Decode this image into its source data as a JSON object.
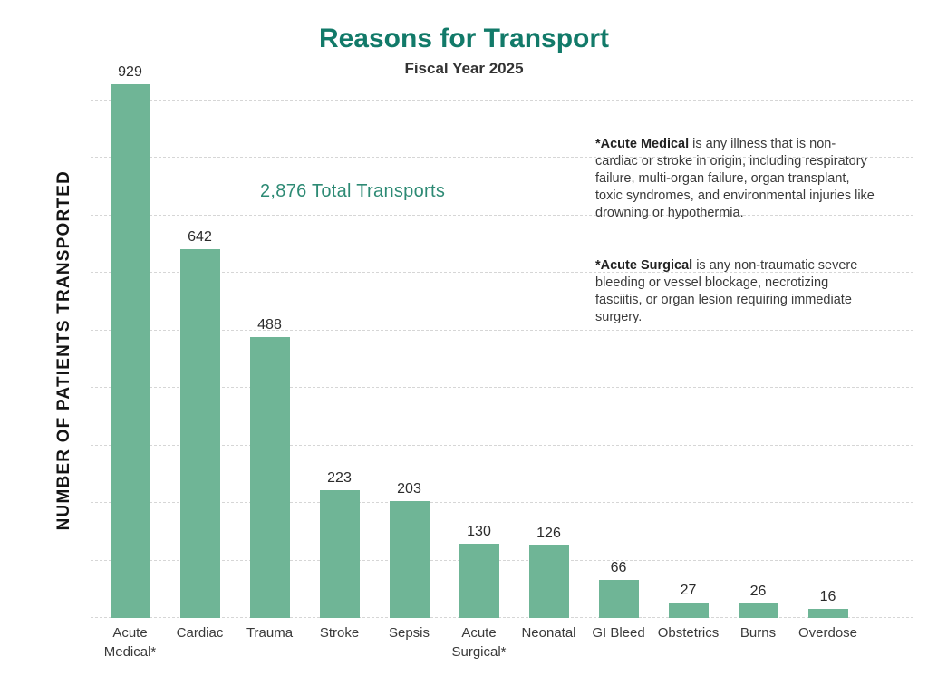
{
  "header": {
    "title": "Reasons for Transport",
    "subtitle": "Fiscal Year 2025"
  },
  "annotations": {
    "total": "2,876 Total Transports",
    "notes": [
      {
        "lead": "*Acute Medical",
        "rest": " is any illness that is non-cardiac or stroke in origin, including respiratory failure, multi-organ failure, organ transplant, toxic syndromes, and environmental injuries like drowning or hypothermia."
      },
      {
        "lead": "*Acute Surgical",
        "rest": " is any non-traumatic severe bleeding or vessel blockage, necrotizing fasciitis, or organ lesion requiring immediate surgery."
      }
    ]
  },
  "chart_data": {
    "type": "bar",
    "title": "Reasons for Transport",
    "subtitle": "Fiscal Year 2025",
    "categories": [
      "Acute Medical*",
      "Cardiac",
      "Trauma",
      "Stroke",
      "Sepsis",
      "Acute Surgical*",
      "Neonatal",
      "GI Bleed",
      "Obstetrics",
      "Burns",
      "Overdose"
    ],
    "values": [
      929,
      642,
      488,
      223,
      203,
      130,
      126,
      66,
      27,
      26,
      16
    ],
    "total": 2876,
    "xlabel": "",
    "ylabel": "NUMBER OF PATIENTS TRANSPORTED",
    "ylim": [
      0,
      930
    ],
    "gridline_interval": 100,
    "gridline_max": 900,
    "grid": "horizontal dashed, no y-axis tick labels",
    "legend": "none",
    "value_labels": "above each bar"
  },
  "colors": {
    "background": "#ffffff",
    "title_teal": "#127A69",
    "total_teal": "#2D8A74",
    "bar_green": "#6FB596",
    "grid_line": "#d6d6d6",
    "text_dark": "#333333"
  }
}
